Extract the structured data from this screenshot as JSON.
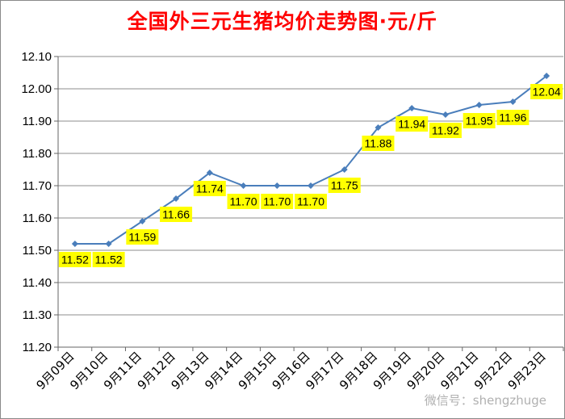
{
  "chart_data": {
    "type": "line",
    "title": "全国外三元生猪均价走势图·元/斤",
    "xlabel": "",
    "ylabel": "",
    "categories": [
      "9月09日",
      "9月10日",
      "9月11日",
      "9月12日",
      "9月13日",
      "9月14日",
      "9月15日",
      "9月16日",
      "9月17日",
      "9月18日",
      "9月19日",
      "9月20日",
      "9月21日",
      "9月22日",
      "9月23日"
    ],
    "series": [
      {
        "values": [
          11.52,
          11.52,
          11.59,
          11.66,
          11.74,
          11.7,
          11.7,
          11.7,
          11.75,
          11.88,
          11.94,
          11.92,
          11.95,
          11.96,
          12.04
        ]
      }
    ],
    "data_labels": [
      "11.52",
      "11.52",
      "11.59",
      "11.66",
      "11.74",
      "11.70",
      "11.70",
      "11.70",
      "11.75",
      "11.88",
      "11.94",
      "11.92",
      "11.95",
      "11.96",
      "12.04"
    ],
    "y_ticks": [
      "11.20",
      "11.30",
      "11.40",
      "11.50",
      "11.60",
      "11.70",
      "11.80",
      "11.90",
      "12.00",
      "12.10"
    ],
    "ylim": [
      11.2,
      12.1
    ],
    "grid": true,
    "legend": "none",
    "colors": {
      "line": "#4a7ebb",
      "label_bg": "#ffff00",
      "title": "#ff0000",
      "grid": "#8c8c8c"
    }
  },
  "watermark": "微信号：shengzhuge"
}
